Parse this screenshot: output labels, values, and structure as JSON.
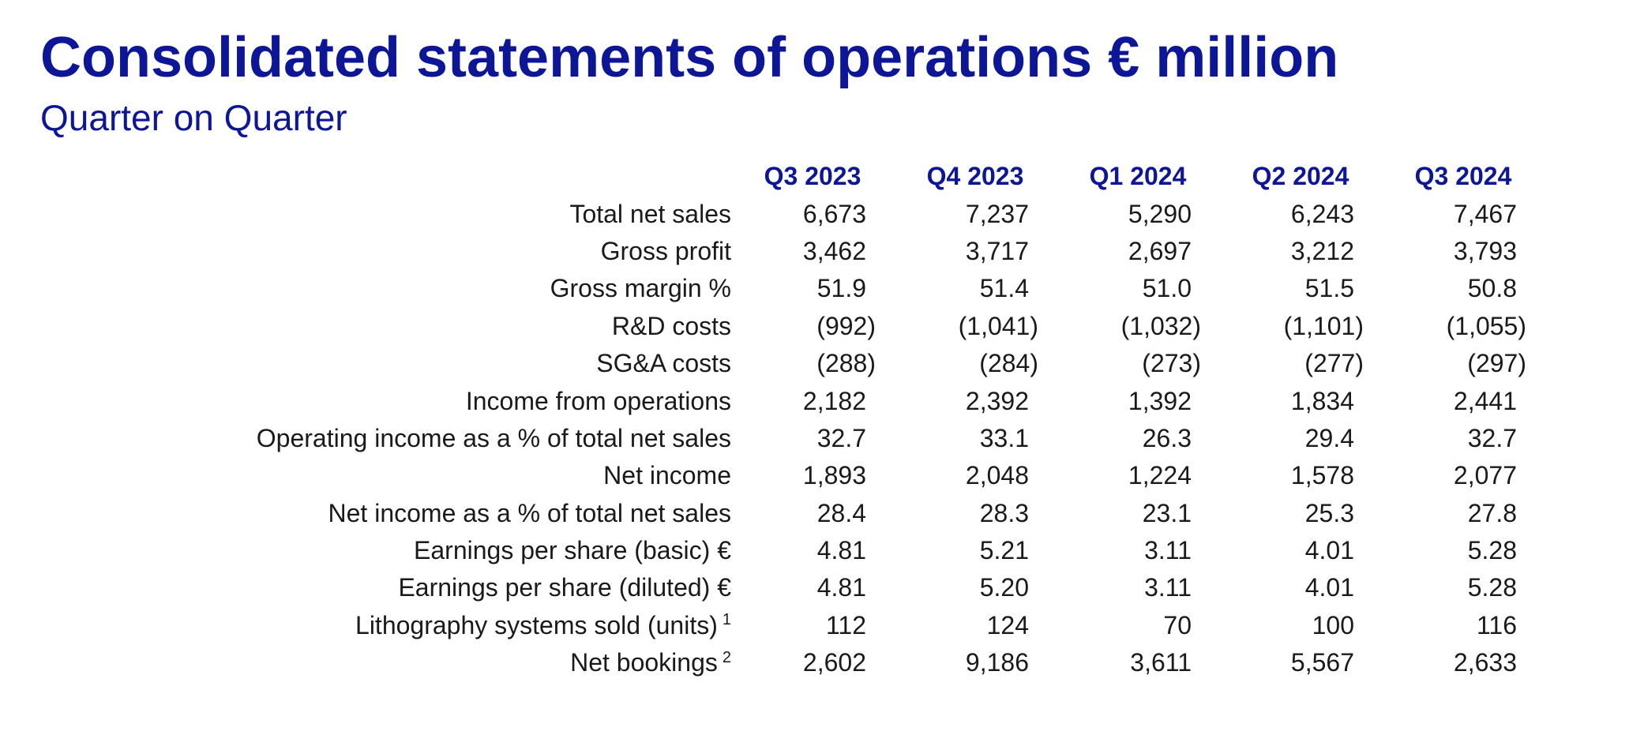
{
  "header": {
    "title": "Consolidated statements of operations € million",
    "subtitle": "Quarter on Quarter"
  },
  "table": {
    "columns": [
      "Q3 2023",
      "Q4 2023",
      "Q1 2024",
      "Q2 2024",
      "Q3 2024"
    ],
    "rows": [
      {
        "label": "Total net sales",
        "footnote": "",
        "values": [
          "6,673",
          "7,237",
          "5,290",
          "6,243",
          "7,467"
        ]
      },
      {
        "label": "Gross profit",
        "footnote": "",
        "values": [
          "3,462",
          "3,717",
          "2,697",
          "3,212",
          "3,793"
        ]
      },
      {
        "label": "Gross margin %",
        "footnote": "",
        "values": [
          "51.9",
          "51.4",
          "51.0",
          "51.5",
          "50.8"
        ]
      },
      {
        "label": "R&D costs",
        "footnote": "",
        "values": [
          "(992)",
          "(1,041)",
          "(1,032)",
          "(1,101)",
          "(1,055)"
        ]
      },
      {
        "label": "SG&A costs",
        "footnote": "",
        "values": [
          "(288)",
          "(284)",
          "(273)",
          "(277)",
          "(297)"
        ]
      },
      {
        "label": "Income from operations",
        "footnote": "",
        "values": [
          "2,182",
          "2,392",
          "1,392",
          "1,834",
          "2,441"
        ]
      },
      {
        "label": "Operating income as a % of total net sales",
        "footnote": "",
        "values": [
          "32.7",
          "33.1",
          "26.3",
          "29.4",
          "32.7"
        ]
      },
      {
        "label": "Net income",
        "footnote": "",
        "values": [
          "1,893",
          "2,048",
          "1,224",
          "1,578",
          "2,077"
        ]
      },
      {
        "label": "Net income as a % of total net sales",
        "footnote": "",
        "values": [
          "28.4",
          "28.3",
          "23.1",
          "25.3",
          "27.8"
        ]
      },
      {
        "label": "Earnings per share (basic) €",
        "footnote": "",
        "values": [
          "4.81",
          "5.21",
          "3.11",
          "4.01",
          "5.28"
        ]
      },
      {
        "label": "Earnings per share (diluted) €",
        "footnote": "",
        "values": [
          "4.81",
          "5.20",
          "3.11",
          "4.01",
          "5.28"
        ]
      },
      {
        "label": "Lithography systems sold (units)",
        "footnote": "1",
        "values": [
          "112",
          "124",
          "70",
          "100",
          "116"
        ]
      },
      {
        "label": "Net bookings",
        "footnote": "2",
        "values": [
          "2,602",
          "9,186",
          "3,611",
          "5,567",
          "2,633"
        ]
      }
    ]
  }
}
